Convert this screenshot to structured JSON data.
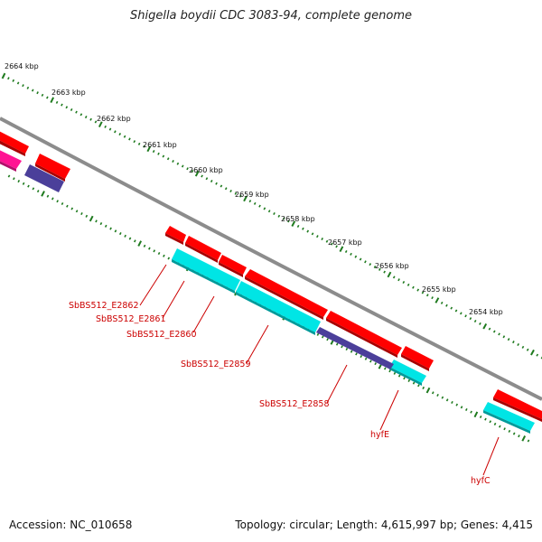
{
  "title": "Shigella boydii CDC 3083-94, complete genome",
  "accession_text": "Accession: NC_010658",
  "summary_text": "Topology: circular; Length: 4,615,997 bp; Genes: 4,415",
  "colors": {
    "backbone": "#8c8c8c",
    "tick": "#1e7a1e",
    "label": "#cc0000",
    "forward_gene": "#ff0000",
    "reverse_gene": "#00e5e5",
    "rna_like": "#4b3f9a",
    "other": "#ff1493"
  },
  "scale": {
    "ticks": [
      {
        "label": "2664 kbp"
      },
      {
        "label": "2663 kbp"
      },
      {
        "label": "2662 kbp"
      },
      {
        "label": "2661 kbp"
      },
      {
        "label": "2660 kbp"
      },
      {
        "label": "2659 kbp"
      },
      {
        "label": "2658 kbp"
      },
      {
        "label": "2657 kbp"
      },
      {
        "label": "2656 kbp"
      },
      {
        "label": "2655 kbp"
      },
      {
        "label": "2654 kbp"
      }
    ]
  },
  "gene_labels": [
    {
      "text": "SbBS512_E2862"
    },
    {
      "text": "SbBS512_E2861"
    },
    {
      "text": "SbBS512_E2860"
    },
    {
      "text": "SbBS512_E2859"
    },
    {
      "text": "SbBS512_E2858"
    },
    {
      "text": "hyfE"
    },
    {
      "text": "hyfC"
    }
  ]
}
